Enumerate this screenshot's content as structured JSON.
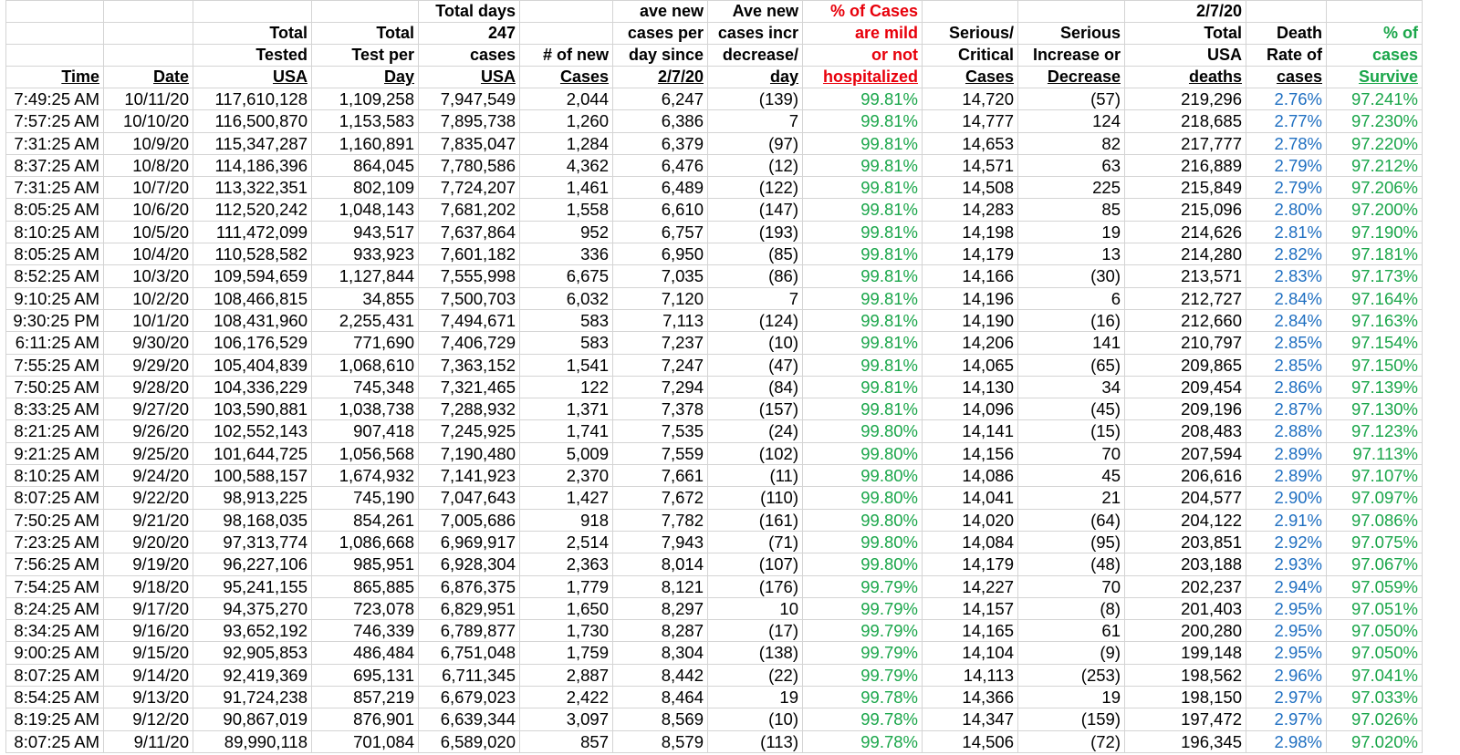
{
  "header_rows": [
    [
      "",
      "",
      "",
      "",
      "Total days",
      "",
      "ave new",
      "Ave new",
      "% of Cases",
      "",
      "",
      "2/7/20",
      "",
      ""
    ],
    [
      "",
      "",
      "Total",
      "Total",
      "247",
      "",
      "cases per",
      "cases incr",
      "are mild",
      "Serious/",
      "Serious",
      "Total",
      "Death",
      "% of"
    ],
    [
      "",
      "",
      "Tested",
      "Test per",
      "cases",
      "# of  new",
      "day since",
      "decrease/",
      "or  not",
      "Critical",
      "Increase or",
      "USA",
      "Rate of",
      "cases"
    ],
    [
      "Time",
      "Date",
      "USA",
      "Day",
      "USA",
      "Cases",
      "2/7/20",
      "day",
      "hospitalized",
      "Cases",
      "Decrease",
      "deaths",
      "cases",
      "Survive"
    ]
  ],
  "rows": [
    [
      "7:49:25 AM",
      "10/11/20",
      "117,610,128",
      "1,109,258",
      "7,947,549",
      "2,044",
      "6,247",
      "(139)",
      "99.81%",
      "14,720",
      "(57)",
      "219,296",
      "2.76%",
      "97.241%"
    ],
    [
      "7:57:25 AM",
      "10/10/20",
      "116,500,870",
      "1,153,583",
      "7,895,738",
      "1,260",
      "6,386",
      "7",
      "99.81%",
      "14,777",
      "124",
      "218,685",
      "2.77%",
      "97.230%"
    ],
    [
      "7:31:25 AM",
      "10/9/20",
      "115,347,287",
      "1,160,891",
      "7,835,047",
      "1,284",
      "6,379",
      "(97)",
      "99.81%",
      "14,653",
      "82",
      "217,777",
      "2.78%",
      "97.220%"
    ],
    [
      "8:37:25 AM",
      "10/8/20",
      "114,186,396",
      "864,045",
      "7,780,586",
      "4,362",
      "6,476",
      "(12)",
      "99.81%",
      "14,571",
      "63",
      "216,889",
      "2.79%",
      "97.212%"
    ],
    [
      "7:31:25 AM",
      "10/7/20",
      "113,322,351",
      "802,109",
      "7,724,207",
      "1,461",
      "6,489",
      "(122)",
      "99.81%",
      "14,508",
      "225",
      "215,849",
      "2.79%",
      "97.206%"
    ],
    [
      "8:05:25 AM",
      "10/6/20",
      "112,520,242",
      "1,048,143",
      "7,681,202",
      "1,558",
      "6,610",
      "(147)",
      "99.81%",
      "14,283",
      "85",
      "215,096",
      "2.80%",
      "97.200%"
    ],
    [
      "8:10:25 AM",
      "10/5/20",
      "111,472,099",
      "943,517",
      "7,637,864",
      "952",
      "6,757",
      "(193)",
      "99.81%",
      "14,198",
      "19",
      "214,626",
      "2.81%",
      "97.190%"
    ],
    [
      "8:05:25 AM",
      "10/4/20",
      "110,528,582",
      "933,923",
      "7,601,182",
      "336",
      "6,950",
      "(85)",
      "99.81%",
      "14,179",
      "13",
      "214,280",
      "2.82%",
      "97.181%"
    ],
    [
      "8:52:25 AM",
      "10/3/20",
      "109,594,659",
      "1,127,844",
      "7,555,998",
      "6,675",
      "7,035",
      "(86)",
      "99.81%",
      "14,166",
      "(30)",
      "213,571",
      "2.83%",
      "97.173%"
    ],
    [
      "9:10:25 AM",
      "10/2/20",
      "108,466,815",
      "34,855",
      "7,500,703",
      "6,032",
      "7,120",
      "7",
      "99.81%",
      "14,196",
      "6",
      "212,727",
      "2.84%",
      "97.164%"
    ],
    [
      "9:30:25 PM",
      "10/1/20",
      "108,431,960",
      "2,255,431",
      "7,494,671",
      "583",
      "7,113",
      "(124)",
      "99.81%",
      "14,190",
      "(16)",
      "212,660",
      "2.84%",
      "97.163%"
    ],
    [
      "6:11:25 AM",
      "9/30/20",
      "106,176,529",
      "771,690",
      "7,406,729",
      "583",
      "7,237",
      "(10)",
      "99.81%",
      "14,206",
      "141",
      "210,797",
      "2.85%",
      "97.154%"
    ],
    [
      "7:55:25 AM",
      "9/29/20",
      "105,404,839",
      "1,068,610",
      "7,363,152",
      "1,541",
      "7,247",
      "(47)",
      "99.81%",
      "14,065",
      "(65)",
      "209,865",
      "2.85%",
      "97.150%"
    ],
    [
      "7:50:25 AM",
      "9/28/20",
      "104,336,229",
      "745,348",
      "7,321,465",
      "122",
      "7,294",
      "(84)",
      "99.81%",
      "14,130",
      "34",
      "209,454",
      "2.86%",
      "97.139%"
    ],
    [
      "8:33:25 AM",
      "9/27/20",
      "103,590,881",
      "1,038,738",
      "7,288,932",
      "1,371",
      "7,378",
      "(157)",
      "99.81%",
      "14,096",
      "(45)",
      "209,196",
      "2.87%",
      "97.130%"
    ],
    [
      "8:21:25 AM",
      "9/26/20",
      "102,552,143",
      "907,418",
      "7,245,925",
      "1,741",
      "7,535",
      "(24)",
      "99.80%",
      "14,141",
      "(15)",
      "208,483",
      "2.88%",
      "97.123%"
    ],
    [
      "9:21:25 AM",
      "9/25/20",
      "101,644,725",
      "1,056,568",
      "7,190,480",
      "5,009",
      "7,559",
      "(102)",
      "99.80%",
      "14,156",
      "70",
      "207,594",
      "2.89%",
      "97.113%"
    ],
    [
      "8:10:25 AM",
      "9/24/20",
      "100,588,157",
      "1,674,932",
      "7,141,923",
      "2,370",
      "7,661",
      "(11)",
      "99.80%",
      "14,086",
      "45",
      "206,616",
      "2.89%",
      "97.107%"
    ],
    [
      "8:07:25 AM",
      "9/22/20",
      "98,913,225",
      "745,190",
      "7,047,643",
      "1,427",
      "7,672",
      "(110)",
      "99.80%",
      "14,041",
      "21",
      "204,577",
      "2.90%",
      "97.097%"
    ],
    [
      "7:50:25 AM",
      "9/21/20",
      "98,168,035",
      "854,261",
      "7,005,686",
      "918",
      "7,782",
      "(161)",
      "99.80%",
      "14,020",
      "(64)",
      "204,122",
      "2.91%",
      "97.086%"
    ],
    [
      "7:23:25 AM",
      "9/20/20",
      "97,313,774",
      "1,086,668",
      "6,969,917",
      "2,514",
      "7,943",
      "(71)",
      "99.80%",
      "14,084",
      "(95)",
      "203,851",
      "2.92%",
      "97.075%"
    ],
    [
      "7:56:25 AM",
      "9/19/20",
      "96,227,106",
      "985,951",
      "6,928,304",
      "2,363",
      "8,014",
      "(107)",
      "99.80%",
      "14,179",
      "(48)",
      "203,188",
      "2.93%",
      "97.067%"
    ],
    [
      "7:54:25 AM",
      "9/18/20",
      "95,241,155",
      "865,885",
      "6,876,375",
      "1,779",
      "8,121",
      "(176)",
      "99.79%",
      "14,227",
      "70",
      "202,237",
      "2.94%",
      "97.059%"
    ],
    [
      "8:24:25 AM",
      "9/17/20",
      "94,375,270",
      "723,078",
      "6,829,951",
      "1,650",
      "8,297",
      "10",
      "99.79%",
      "14,157",
      "(8)",
      "201,403",
      "2.95%",
      "97.051%"
    ],
    [
      "8:34:25 AM",
      "9/16/20",
      "93,652,192",
      "746,339",
      "6,789,877",
      "1,730",
      "8,287",
      "(17)",
      "99.79%",
      "14,165",
      "61",
      "200,280",
      "2.95%",
      "97.050%"
    ],
    [
      "9:00:25 AM",
      "9/15/20",
      "92,905,853",
      "486,484",
      "6,751,048",
      "1,759",
      "8,304",
      "(138)",
      "99.79%",
      "14,104",
      "(9)",
      "199,148",
      "2.95%",
      "97.050%"
    ],
    [
      "8:07:25 AM",
      "9/14/20",
      "92,419,369",
      "695,131",
      "6,711,345",
      "2,887",
      "8,442",
      "(22)",
      "99.79%",
      "14,113",
      "(253)",
      "198,562",
      "2.96%",
      "97.041%"
    ],
    [
      "8:54:25 AM",
      "9/13/20",
      "91,724,238",
      "857,219",
      "6,679,023",
      "2,422",
      "8,464",
      "19",
      "99.78%",
      "14,366",
      "19",
      "198,150",
      "2.97%",
      "97.033%"
    ],
    [
      "8:19:25 AM",
      "9/12/20",
      "90,867,019",
      "876,901",
      "6,639,344",
      "3,097",
      "8,569",
      "(10)",
      "99.78%",
      "14,347",
      "(159)",
      "197,472",
      "2.97%",
      "97.026%"
    ],
    [
      "8:07:25 AM",
      "9/11/20",
      "89,990,118",
      "701,084",
      "6,589,020",
      "857",
      "8,579",
      "(113)",
      "99.78%",
      "14,506",
      "(72)",
      "196,345",
      "2.98%",
      "97.020%"
    ]
  ],
  "colors": {
    "mild_header": "#e8000b",
    "mild_values": "#1aa64a",
    "death_rate_values": "#1f6fc1",
    "survive": "#1aa64a"
  }
}
